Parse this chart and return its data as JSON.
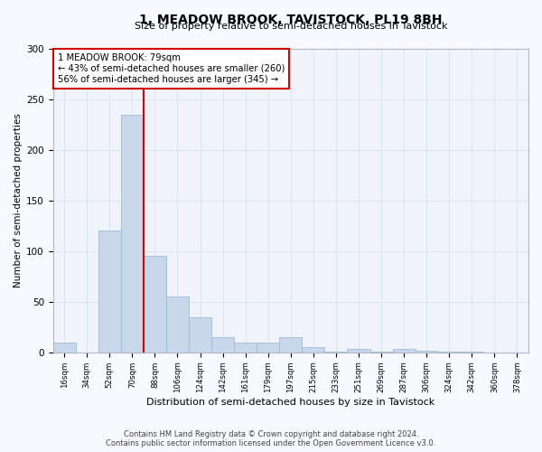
{
  "title": "1, MEADOW BROOK, TAVISTOCK, PL19 8BH",
  "subtitle": "Size of property relative to semi-detached houses in Tavistock",
  "xlabel": "Distribution of semi-detached houses by size in Tavistock",
  "ylabel": "Number of semi-detached properties",
  "annotation_line1": "1 MEADOW BROOK: 79sqm",
  "annotation_line2": "← 43% of semi-detached houses are smaller (260)",
  "annotation_line3": "56% of semi-detached houses are larger (345) →",
  "footer_line1": "Contains HM Land Registry data © Crown copyright and database right 2024.",
  "footer_line2": "Contains public sector information licensed under the Open Government Licence v3.0.",
  "bar_color": "#c8d8ea",
  "bar_edge_color": "#a0bcd4",
  "property_line_color": "#cc0000",
  "annotation_box_edgecolor": "#cc0000",
  "grid_color": "#d8e4f0",
  "background_color": "#f8f8ff",
  "plot_bg_color": "#f0f4fa",
  "categories": [
    "16sqm",
    "34sqm",
    "52sqm",
    "70sqm",
    "88sqm",
    "106sqm",
    "124sqm",
    "142sqm",
    "161sqm",
    "179sqm",
    "197sqm",
    "215sqm",
    "233sqm",
    "251sqm",
    "269sqm",
    "287sqm",
    "306sqm",
    "324sqm",
    "342sqm",
    "360sqm",
    "378sqm"
  ],
  "values": [
    10,
    0,
    120,
    235,
    95,
    55,
    35,
    15,
    10,
    10,
    15,
    5,
    1,
    3,
    1,
    3,
    2,
    1,
    1,
    0,
    0
  ],
  "property_line_x": 4,
  "ylim": [
    0,
    300
  ],
  "yticks": [
    0,
    50,
    100,
    150,
    200,
    250,
    300
  ]
}
